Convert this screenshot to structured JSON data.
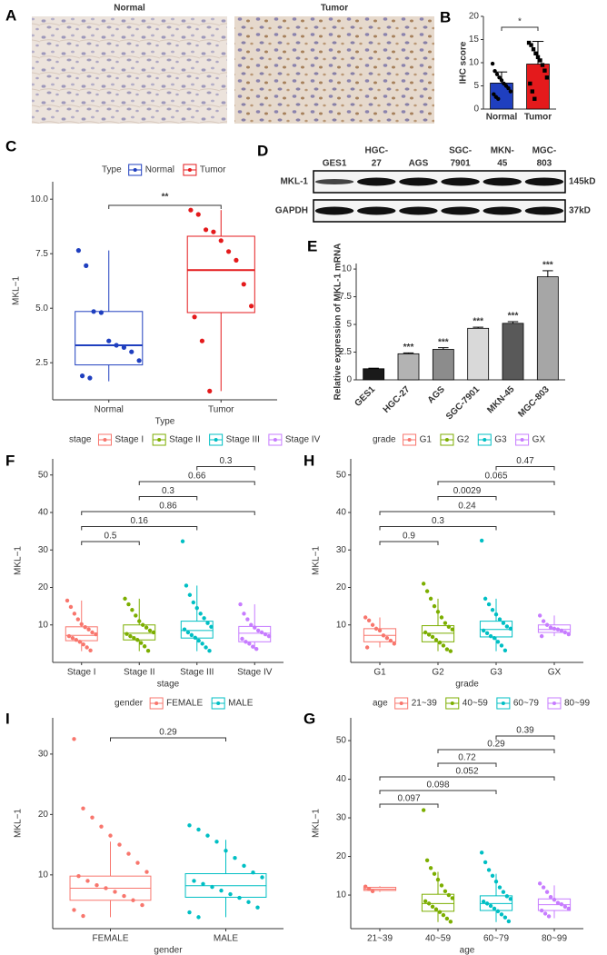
{
  "chart_data": [
    {
      "type": "image",
      "panel": "A",
      "titles": [
        "Normal",
        "Tumor"
      ]
    },
    {
      "type": "bar",
      "panel": "B",
      "ylabel": "IHC score",
      "categories": [
        "Normal",
        "Tumor"
      ],
      "values": [
        5.6,
        9.7
      ],
      "errors": [
        2.4,
        4.9
      ],
      "colors": [
        "#1f3fbf",
        "#e41a1c"
      ],
      "points": [
        [
          9.8,
          8.2,
          7.5,
          6.8,
          6.2,
          5.5,
          5.0,
          4.5,
          3.8,
          3.2,
          2.6,
          2.2
        ],
        [
          14.3,
          13.8,
          12.9,
          12.0,
          11.2,
          10.5,
          9.5,
          8.3,
          6.8,
          5.5,
          3.8,
          2.2
        ]
      ],
      "ylim": [
        0,
        20
      ],
      "yticks": [
        0,
        5,
        10,
        15,
        20
      ],
      "comparisons": [
        {
          "pair": [
            "Normal",
            "Tumor"
          ],
          "label": "*"
        }
      ]
    },
    {
      "type": "box",
      "panel": "C",
      "legend_title": "Type",
      "xlabel": "Type",
      "ylabel": "MKL−1",
      "ylim": [
        0.8,
        10.8
      ],
      "yticks": [
        2.5,
        {
          "value": 5,
          "label": "5.0"
        },
        7.5,
        {
          "value": 10,
          "label": "10.0"
        }
      ],
      "groups": [
        {
          "name": "Normal",
          "color": "#1f3fbf",
          "stats": [
            1.65,
            2.4,
            3.3,
            4.85,
            7.65
          ],
          "points": [
            7.65,
            6.95,
            4.85,
            4.8,
            3.5,
            3.3,
            3.2,
            3.0,
            2.6,
            1.9,
            1.8
          ]
        },
        {
          "name": "Tumor",
          "color": "#e41a1c",
          "stats": [
            1.2,
            4.8,
            6.75,
            8.3,
            9.5
          ],
          "points": [
            9.5,
            9.3,
            8.6,
            8.5,
            8.1,
            7.6,
            7.2,
            6.1,
            5.1,
            4.6,
            3.5,
            1.2
          ]
        }
      ],
      "comparisons": [
        {
          "pair": [
            "Normal",
            "Tumor"
          ],
          "label": "**"
        }
      ]
    },
    {
      "type": "blot",
      "panel": "D",
      "lanes": [
        [
          "GES1"
        ],
        [
          "HGC-",
          "27"
        ],
        [
          "AGS"
        ],
        [
          "SGC-",
          "7901"
        ],
        [
          "MKN-",
          "45"
        ],
        [
          "MGC-",
          "803"
        ]
      ],
      "rows": [
        {
          "name": "MKL-1",
          "size": "145kD"
        },
        {
          "name": "GAPDH",
          "size": "37kD"
        }
      ]
    },
    {
      "type": "bar",
      "panel": "E",
      "ylabel": "Relative expression of MKL-1 mRNA",
      "categories": [
        "GES1",
        "HGC-27",
        "AGS",
        "SGC-7901",
        "MKN-45",
        "MGC-803"
      ],
      "values": [
        1,
        2.35,
        2.75,
        4.65,
        5.1,
        9.3
      ],
      "errors": [
        0.05,
        0.08,
        0.15,
        0.1,
        0.15,
        0.55
      ],
      "significance": [
        null,
        "***",
        "***",
        "***",
        "***",
        "***"
      ],
      "colors": [
        "#1a1a1a",
        "#b3b3b3",
        "#8c8c8c",
        "#d9d9d9",
        "#595959",
        "#a6a6a6"
      ],
      "ylim": [
        0,
        10.5
      ],
      "yticks": [
        0,
        2.5,
        5,
        7.5,
        10
      ]
    },
    {
      "type": "box",
      "panel": "F",
      "legend_title": "stage",
      "xlabel": "stage",
      "ylabel": "MKL−1",
      "ylim": [
        0,
        54.3
      ],
      "yticks": [
        10,
        20,
        30,
        40,
        50
      ],
      "groups": [
        {
          "name": "Stage I",
          "color": "#F8766D",
          "stats": [
            3,
            5.8,
            7.2,
            9.5,
            16.5
          ],
          "points": [
            16.5,
            14.8,
            13,
            11.5,
            10.2,
            9.4,
            8.8,
            8,
            7.5,
            7,
            6.5,
            6,
            5.5,
            4.8,
            4,
            3.2
          ]
        },
        {
          "name": "Stage II",
          "color": "#7CAE00",
          "stats": [
            3,
            6,
            7.8,
            10,
            17
          ],
          "points": [
            17,
            15.5,
            14,
            12.5,
            11,
            10,
            9.3,
            8.5,
            8,
            7.6,
            7,
            6.5,
            6,
            5.2,
            4.3,
            3.1
          ]
        },
        {
          "name": "Stage III",
          "color": "#00BFC4",
          "stats": [
            3,
            6.5,
            8.5,
            11,
            20.5
          ],
          "points": [
            32.3,
            20.5,
            18,
            16,
            14.5,
            13,
            11.8,
            10.5,
            9.5,
            8.8,
            8,
            7.3,
            6.6,
            5.8,
            5,
            4,
            3.1
          ]
        },
        {
          "name": "Stage IV",
          "color": "#C77CFF",
          "stats": [
            3.5,
            5.5,
            7.8,
            9.6,
            15.5
          ],
          "points": [
            15.5,
            13,
            11.5,
            10,
            9.3,
            8.5,
            8,
            7.5,
            7,
            6.3,
            5.5,
            5,
            4.2,
            3.6
          ]
        }
      ],
      "comparisons": [
        {
          "pair": [
            "Stage I",
            "Stage II"
          ],
          "p": 0.5
        },
        {
          "pair": [
            "Stage I",
            "Stage III"
          ],
          "p": 0.16
        },
        {
          "pair": [
            "Stage I",
            "Stage IV"
          ],
          "p": 0.86
        },
        {
          "pair": [
            "Stage II",
            "Stage III"
          ],
          "p": 0.3
        },
        {
          "pair": [
            "Stage II",
            "Stage IV"
          ],
          "p": 0.66
        },
        {
          "pair": [
            "Stage III",
            "Stage IV"
          ],
          "p": 0.3
        }
      ]
    },
    {
      "type": "box",
      "panel": "H",
      "legend_title": "grade",
      "xlabel": "grade",
      "ylabel": "MKL−1",
      "ylim": [
        0,
        54.3
      ],
      "yticks": [
        10,
        20,
        30,
        40,
        50
      ],
      "groups": [
        {
          "name": "G1",
          "color": "#F8766D",
          "stats": [
            4,
            5.5,
            7.2,
            9,
            12
          ],
          "points": [
            12,
            11.2,
            10,
            9,
            8.5,
            7.2,
            6.5,
            5.8,
            5,
            4
          ]
        },
        {
          "name": "G2",
          "color": "#7CAE00",
          "stats": [
            3,
            5.5,
            7.8,
            9.8,
            17
          ],
          "points": [
            21,
            19,
            17,
            15,
            13.5,
            12,
            10.5,
            9.5,
            8.8,
            8,
            7.4,
            6.8,
            6,
            5.3,
            4.5,
            3.5,
            3
          ]
        },
        {
          "name": "G3",
          "color": "#00BFC4",
          "stats": [
            3,
            6.8,
            8.8,
            11,
            17
          ],
          "points": [
            32.5,
            17,
            15.5,
            14,
            12.8,
            11.5,
            10.5,
            9.6,
            9,
            8.5,
            7.8,
            7,
            6.5,
            5.5,
            4.5,
            3.2
          ]
        },
        {
          "name": "GX",
          "color": "#C77CFF",
          "stats": [
            7,
            8,
            8.8,
            10,
            12.5
          ],
          "points": [
            12.5,
            11,
            10,
            9.3,
            9,
            8.8,
            8.5,
            8,
            7.5,
            7
          ]
        }
      ],
      "comparisons": [
        {
          "pair": [
            "G1",
            "G2"
          ],
          "p": 0.9
        },
        {
          "pair": [
            "G1",
            "G3"
          ],
          "p": 0.3
        },
        {
          "pair": [
            "G1",
            "GX"
          ],
          "p": 0.24
        },
        {
          "pair": [
            "G2",
            "G3"
          ],
          "p": 0.0029
        },
        {
          "pair": [
            "G2",
            "GX"
          ],
          "p": 0.065
        },
        {
          "pair": [
            "G3",
            "GX"
          ],
          "p": 0.47
        }
      ]
    },
    {
      "type": "box",
      "panel": "I",
      "legend_title": "gender",
      "xlabel": "gender",
      "ylabel": "MKL−1",
      "ylim": [
        1.1,
        36
      ],
      "yticks": [
        10,
        20,
        30
      ],
      "groups": [
        {
          "name": "FEMALE",
          "color": "#F8766D",
          "stats": [
            3,
            5.8,
            7.8,
            9.8,
            15.5
          ],
          "points": [
            32.5,
            21,
            19.5,
            18,
            16.5,
            15,
            13.5,
            12,
            10.5,
            9.8,
            9,
            8.3,
            7.8,
            7.2,
            6.5,
            5.8,
            5,
            4.2,
            3.2
          ]
        },
        {
          "name": "MALE",
          "color": "#00BFC4",
          "stats": [
            3,
            6.3,
            8.2,
            10.2,
            15.8
          ],
          "points": [
            18.2,
            17.5,
            16.5,
            15.5,
            14,
            12.8,
            11.5,
            10.4,
            9.6,
            9,
            8.5,
            8,
            7.4,
            6.8,
            6.2,
            5.5,
            4.6,
            3.8,
            3
          ]
        }
      ],
      "comparisons": [
        {
          "pair": [
            "FEMALE",
            "MALE"
          ],
          "p": 0.29
        }
      ]
    },
    {
      "type": "box",
      "panel": "G",
      "legend_title": "age",
      "xlabel": "age",
      "ylabel": "MKL−1",
      "ylim": [
        1.3,
        55.9
      ],
      "yticks": [
        10,
        20,
        30,
        40,
        50
      ],
      "groups": [
        {
          "name": "21~39",
          "color": "#F8766D",
          "stats": [
            10.8,
            11.2,
            11.5,
            12,
            12.3
          ],
          "points": [
            12.2,
            11.6,
            11
          ]
        },
        {
          "name": "40~59",
          "color": "#7CAE00",
          "stats": [
            3,
            5.8,
            7.8,
            10.2,
            16
          ],
          "points": [
            32,
            19,
            17,
            15.5,
            14,
            12.5,
            11,
            10,
            9.2,
            8.4,
            7.8,
            7,
            6.3,
            5.6,
            4.8,
            3.9,
            3.1
          ]
        },
        {
          "name": "60~79",
          "color": "#00BFC4",
          "stats": [
            3,
            6,
            7.8,
            9.8,
            15.5
          ],
          "points": [
            21,
            18.5,
            16.5,
            15,
            13.5,
            12,
            10.8,
            9.7,
            9,
            8.3,
            7.8,
            7.2,
            6.5,
            5.8,
            5,
            4.2,
            3.2
          ]
        },
        {
          "name": "80~99",
          "color": "#C77CFF",
          "stats": [
            4,
            6,
            7.5,
            9,
            12.5
          ],
          "points": [
            13,
            12,
            10.8,
            9.5,
            8.8,
            8,
            7.6,
            7,
            6.5,
            6,
            5.2,
            4.5
          ]
        }
      ],
      "comparisons": [
        {
          "pair": [
            "21~39",
            "40~59"
          ],
          "p": 0.097
        },
        {
          "pair": [
            "21~39",
            "60~79"
          ],
          "p": 0.098
        },
        {
          "pair": [
            "21~39",
            "80~99"
          ],
          "p": 0.052
        },
        {
          "pair": [
            "40~59",
            "60~79"
          ],
          "p": 0.72
        },
        {
          "pair": [
            "40~59",
            "80~99"
          ],
          "p": 0.29
        },
        {
          "pair": [
            "60~79",
            "80~99"
          ],
          "p": 0.39
        }
      ]
    }
  ]
}
